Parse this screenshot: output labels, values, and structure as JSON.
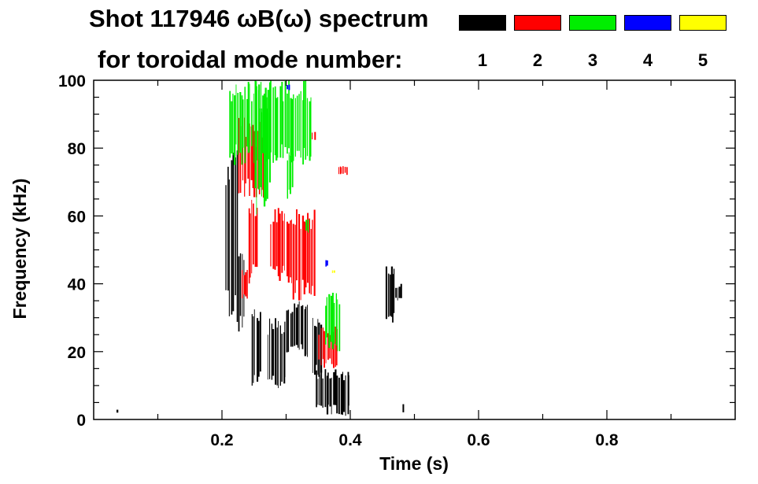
{
  "chart_data": {
    "type": "heatmap",
    "title_line1": "Shot 117946 ωB(ω) spectrum",
    "title_line2": "for toroidal mode number:",
    "xlabel": "Time (s)",
    "ylabel": "Frequency (kHz)",
    "xlim": [
      0.0,
      1.0
    ],
    "ylim": [
      0,
      100
    ],
    "xticks": [
      0.2,
      0.4,
      0.6,
      0.8
    ],
    "yticks": [
      0,
      20,
      40,
      60,
      80,
      100
    ],
    "legend": [
      {
        "label": "1",
        "color": "#000000"
      },
      {
        "label": "2",
        "color": "#ff0000"
      },
      {
        "label": "3",
        "color": "#00ee00"
      },
      {
        "label": "4",
        "color": "#0000ff"
      },
      {
        "label": "5",
        "color": "#ffff00"
      }
    ],
    "series": [
      {
        "mode": "1",
        "color": "#000000",
        "regions": [
          {
            "t": [
              0.205,
              0.225
            ],
            "f": [
              28,
              80
            ]
          },
          {
            "t": [
              0.225,
              0.235
            ],
            "f": [
              25,
              50
            ]
          },
          {
            "t": [
              0.245,
              0.26
            ],
            "f": [
              8,
              33
            ]
          },
          {
            "t": [
              0.27,
              0.3
            ],
            "f": [
              8,
              30
            ]
          },
          {
            "t": [
              0.3,
              0.335
            ],
            "f": [
              18,
              35
            ]
          },
          {
            "t": [
              0.34,
              0.355
            ],
            "f": [
              12,
              30
            ]
          },
          {
            "t": [
              0.345,
              0.4
            ],
            "f": [
              1,
              15
            ]
          },
          {
            "t": [
              0.455,
              0.47
            ],
            "f": [
              28,
              47
            ]
          },
          {
            "t": [
              0.47,
              0.48
            ],
            "f": [
              35,
              40
            ]
          },
          {
            "t": [
              0.48,
              0.483
            ],
            "f": [
              2,
              5
            ]
          },
          {
            "t": [
              0.035,
              0.037
            ],
            "f": [
              2,
              3
            ]
          }
        ]
      },
      {
        "mode": "2",
        "color": "#ff0000",
        "regions": [
          {
            "t": [
              0.225,
              0.265
            ],
            "f": [
              65,
              89
            ]
          },
          {
            "t": [
              0.24,
              0.255
            ],
            "f": [
              40,
              65
            ]
          },
          {
            "t": [
              0.23,
              0.24
            ],
            "f": [
              35,
              45
            ]
          },
          {
            "t": [
              0.275,
              0.31
            ],
            "f": [
              40,
              63
            ]
          },
          {
            "t": [
              0.31,
              0.345
            ],
            "f": [
              35,
              62
            ]
          },
          {
            "t": [
              0.35,
              0.38
            ],
            "f": [
              15,
              28
            ]
          },
          {
            "t": [
              0.38,
              0.395
            ],
            "f": [
              72,
              75
            ]
          },
          {
            "t": [
              0.34,
              0.345
            ],
            "f": [
              82,
              85
            ]
          }
        ]
      },
      {
        "mode": "3",
        "color": "#00ee00",
        "regions": [
          {
            "t": [
              0.21,
              0.34
            ],
            "f": [
              75,
              100
            ]
          },
          {
            "t": [
              0.25,
              0.275
            ],
            "f": [
              60,
              100
            ]
          },
          {
            "t": [
              0.3,
              0.31
            ],
            "f": [
              65,
              80
            ]
          },
          {
            "t": [
              0.36,
              0.385
            ],
            "f": [
              20,
              38
            ]
          },
          {
            "t": [
              0.33,
              0.335
            ],
            "f": [
              55,
              60
            ]
          }
        ]
      },
      {
        "mode": "4",
        "color": "#0000ff",
        "regions": [
          {
            "t": [
              0.36,
              0.365
            ],
            "f": [
              45,
              47
            ]
          },
          {
            "t": [
              0.3,
              0.305
            ],
            "f": [
              97,
              99
            ]
          }
        ]
      },
      {
        "mode": "5",
        "color": "#ffff00",
        "regions": [
          {
            "t": [
              0.37,
              0.375
            ],
            "f": [
              43,
              44
            ]
          }
        ]
      }
    ]
  }
}
